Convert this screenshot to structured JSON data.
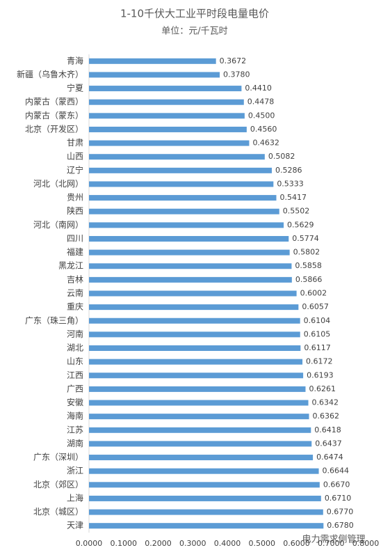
{
  "chart_data": {
    "type": "bar",
    "orientation": "horizontal",
    "title": "1-10千伏大工业平时段电量电价",
    "subtitle": "单位：元/千瓦时",
    "categories": [
      "青海",
      "新疆（乌鲁木齐）",
      "宁夏",
      "内蒙古（蒙西）",
      "内蒙古（蒙东）",
      "北京（开发区）",
      "甘肃",
      "山西",
      "辽宁",
      "河北（北网）",
      "贵州",
      "陕西",
      "河北（南网）",
      "四川",
      "福建",
      "黑龙江",
      "吉林",
      "云南",
      "重庆",
      "广东（珠三角）",
      "河南",
      "湖北",
      "山东",
      "江西",
      "广西",
      "安徽",
      "海南",
      "江苏",
      "湖南",
      "广东（深圳）",
      "浙江",
      "北京（郊区）",
      "上海",
      "北京（城区）",
      "天津"
    ],
    "values": [
      0.3672,
      0.378,
      0.441,
      0.4478,
      0.45,
      0.456,
      0.4632,
      0.5082,
      0.5286,
      0.5333,
      0.5417,
      0.5502,
      0.5629,
      0.5774,
      0.5802,
      0.5858,
      0.5866,
      0.6002,
      0.6057,
      0.6104,
      0.6105,
      0.6117,
      0.6172,
      0.6193,
      0.6261,
      0.6342,
      0.6362,
      0.6418,
      0.6437,
      0.6474,
      0.6644,
      0.667,
      0.671,
      0.677,
      0.678
    ],
    "value_labels": [
      "0.3672",
      "0.3780",
      "0.4410",
      "0.4478",
      "0.4500",
      "0.4560",
      "0.4632",
      "0.5082",
      "0.5286",
      "0.5333",
      "0.5417",
      "0.5502",
      "0.5629",
      "0.5774",
      "0.5802",
      "0.5858",
      "0.5866",
      "0.6002",
      "0.6057",
      "0.6104",
      "0.6105",
      "0.6117",
      "0.6172",
      "0.6193",
      "0.6261",
      "0.6342",
      "0.6362",
      "0.6418",
      "0.6437",
      "0.6474",
      "0.6644",
      "0.6670",
      "0.6710",
      "0.6770",
      "0.6780"
    ],
    "color": "#5b9bd5",
    "xlim": [
      0,
      0.8
    ],
    "xticks": [
      {
        "value": 0,
        "label": "0.0000"
      },
      {
        "value": 0.1,
        "label": "0.1000"
      },
      {
        "value": 0.2,
        "label": "0.2000"
      },
      {
        "value": 0.3,
        "label": "0.3000"
      },
      {
        "value": 0.4,
        "label": "0.4000"
      },
      {
        "value": 0.5,
        "label": "0.5000"
      },
      {
        "value": 0.6,
        "label": "0.6000"
      },
      {
        "value": 0.7,
        "label": "0.7000"
      },
      {
        "value": 0.8,
        "label": "0.8000"
      }
    ],
    "grid": false,
    "watermark": "电力需求侧管理"
  }
}
